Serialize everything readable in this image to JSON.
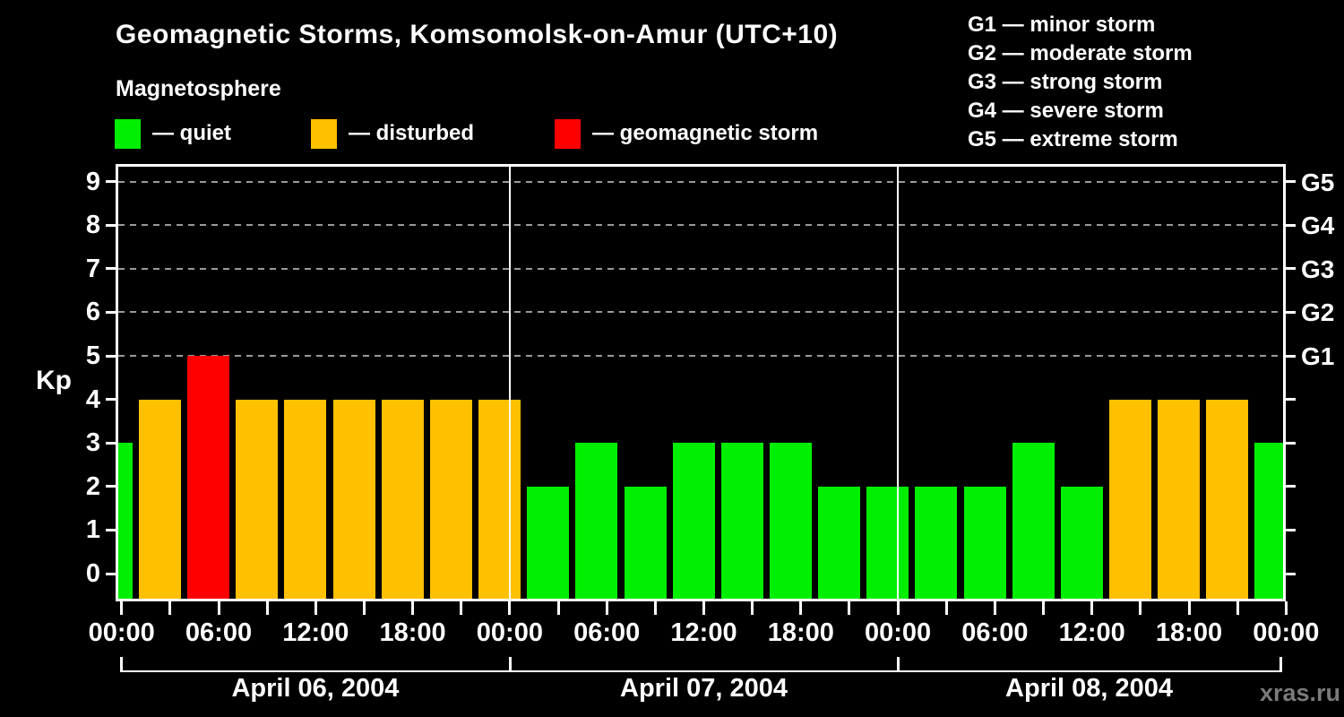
{
  "title": "Geomagnetic Storms, Komsomolsk-on-Amur (UTC+10)",
  "subtitle": "Magnetosphere",
  "legend": {
    "items": [
      {
        "label": "— quiet",
        "color": "#00ee00"
      },
      {
        "label": "— disturbed",
        "color": "#ffc000"
      },
      {
        "label": "— geomagnetic storm",
        "color": "#ff0000"
      }
    ]
  },
  "storm_scale_legend": {
    "items": [
      "G1 — minor storm",
      "G2 — moderate storm",
      "G3 — strong storm",
      "G4 — severe storm",
      "G5 — extreme storm"
    ]
  },
  "watermark": "xras.ru",
  "chart_data": {
    "type": "bar",
    "title": "Geomagnetic Storms, Komsomolsk-on-Amur (UTC+10)",
    "ylabel": "Kp",
    "ylim": [
      0,
      9
    ],
    "y_ticks": [
      0,
      1,
      2,
      3,
      4,
      5,
      6,
      7,
      8,
      9
    ],
    "gridlines": "dashed horizontal lines at Kp 5-9 (G1-G5)",
    "right_axis_labels": [
      {
        "kp": 5,
        "label": "G1"
      },
      {
        "kp": 6,
        "label": "G2"
      },
      {
        "kp": 7,
        "label": "G3"
      },
      {
        "kp": 8,
        "label": "G4"
      },
      {
        "kp": 9,
        "label": "G5"
      }
    ],
    "x_tick_labels": [
      "00:00",
      "06:00",
      "12:00",
      "18:00",
      "00:00",
      "06:00",
      "12:00",
      "18:00",
      "00:00",
      "06:00",
      "12:00",
      "18:00",
      "00:00"
    ],
    "x_tick_interval_hours": 3,
    "partial_first_bar_kp": 3,
    "days": [
      {
        "date": "April 06, 2004",
        "kp": [
          4,
          5,
          4,
          4,
          4,
          4,
          4,
          4
        ]
      },
      {
        "date": "April 07, 2004",
        "kp": [
          2,
          3,
          2,
          3,
          3,
          3,
          2,
          2
        ]
      },
      {
        "date": "April 08, 2004",
        "kp": [
          2,
          2,
          3,
          2,
          4,
          4,
          4,
          3
        ]
      }
    ],
    "color_rule": {
      "quiet_kp_max": 3,
      "disturbed_kp": 4,
      "storm_kp_min": 5
    },
    "colors": {
      "quiet": "#00ee00",
      "disturbed": "#ffc000",
      "storm": "#ff0000",
      "background": "#000000",
      "axis": "#ffffff",
      "gridline": "#9a9a9a"
    }
  }
}
